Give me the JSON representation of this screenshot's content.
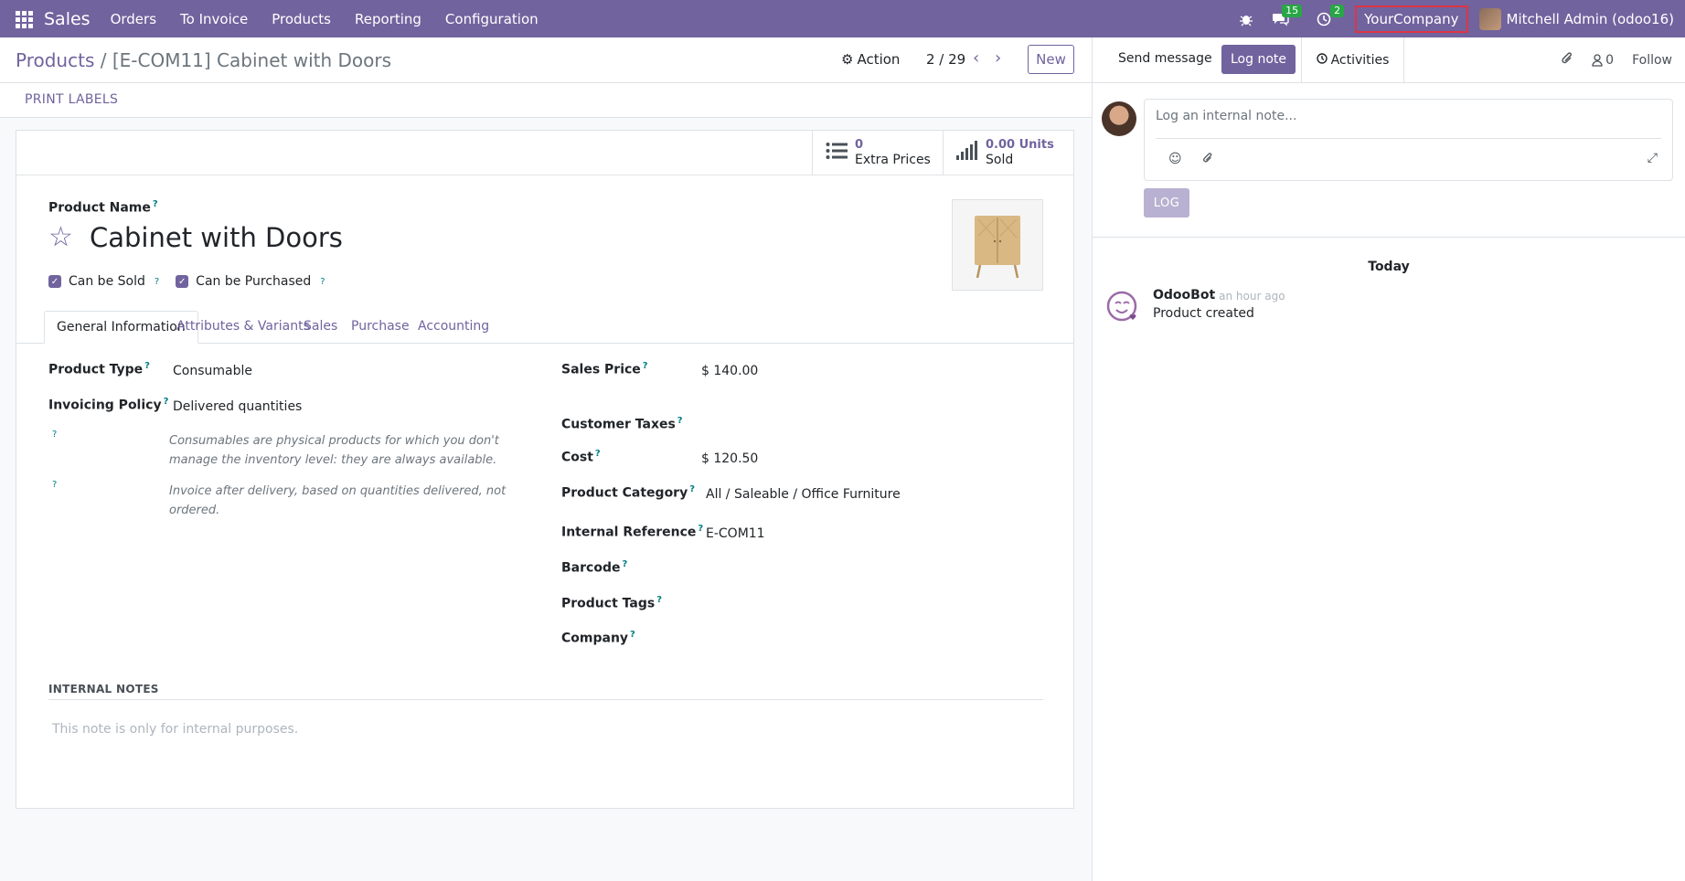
{
  "navbar": {
    "brand": "Sales",
    "menu": [
      "Orders",
      "To Invoice",
      "Products",
      "Reporting",
      "Configuration"
    ],
    "messages_count": "15",
    "activities_count": "2",
    "company": "YourCompany",
    "user": "Mitchell Admin (odoo16)"
  },
  "control_panel": {
    "breadcrumb_parent": "Products",
    "breadcrumb_separator": "/",
    "breadcrumb_current": "[E-COM11] Cabinet with Doors",
    "action_label": "Action",
    "pager": "2 / 29",
    "new_label": "New"
  },
  "status_bar": {
    "print_labels": "PRINT LABELS"
  },
  "stat_buttons": [
    {
      "value": "0",
      "label": "Extra Prices",
      "icon": "list-icon"
    },
    {
      "value": "0.00 Units",
      "label": "Sold",
      "icon": "signal-icon"
    }
  ],
  "product": {
    "name_label": "Product Name",
    "name": "Cabinet with Doors",
    "can_be_sold": "Can be Sold",
    "can_be_purchased": "Can be Purchased"
  },
  "tabs": [
    "General Information",
    "Attributes & Variants",
    "Sales",
    "Purchase",
    "Accounting"
  ],
  "fields_left": {
    "product_type_label": "Product Type",
    "product_type": "Consumable",
    "invoicing_policy_label": "Invoicing Policy",
    "invoicing_policy": "Delivered quantities",
    "help_1_line1": "Consumables are physical products for which you don't",
    "help_1_line2": "manage the inventory level: they are always available.",
    "help_2_line1": "Invoice after delivery, based on quantities delivered, not",
    "help_2_line2": "ordered."
  },
  "fields_right": {
    "sales_price_label": "Sales Price",
    "sales_price": "$ 140.00",
    "customer_taxes_label": "Customer Taxes",
    "cost_label": "Cost",
    "cost": "$ 120.50",
    "product_category_label": "Product Category",
    "product_category": "All / Saleable / Office Furniture",
    "internal_reference_label": "Internal Reference",
    "internal_reference": "E-COM11",
    "barcode_label": "Barcode",
    "product_tags_label": "Product Tags",
    "company_label": "Company"
  },
  "internal_notes": {
    "title": "INTERNAL NOTES",
    "placeholder": "This note is only for internal purposes."
  },
  "chatter": {
    "send_message": "Send message",
    "log_note": "Log note",
    "activities": "Activities",
    "followers_count": "0",
    "follow": "Follow",
    "composer_placeholder": "Log an internal note...",
    "log_button": "LOG",
    "date_separator": "Today",
    "message_author": "OdooBot",
    "message_time": "- an hour ago",
    "message_body": "Product created"
  },
  "colors": {
    "brand": "#71639e",
    "badge": "#28a745",
    "highlight": "#dc3545"
  }
}
